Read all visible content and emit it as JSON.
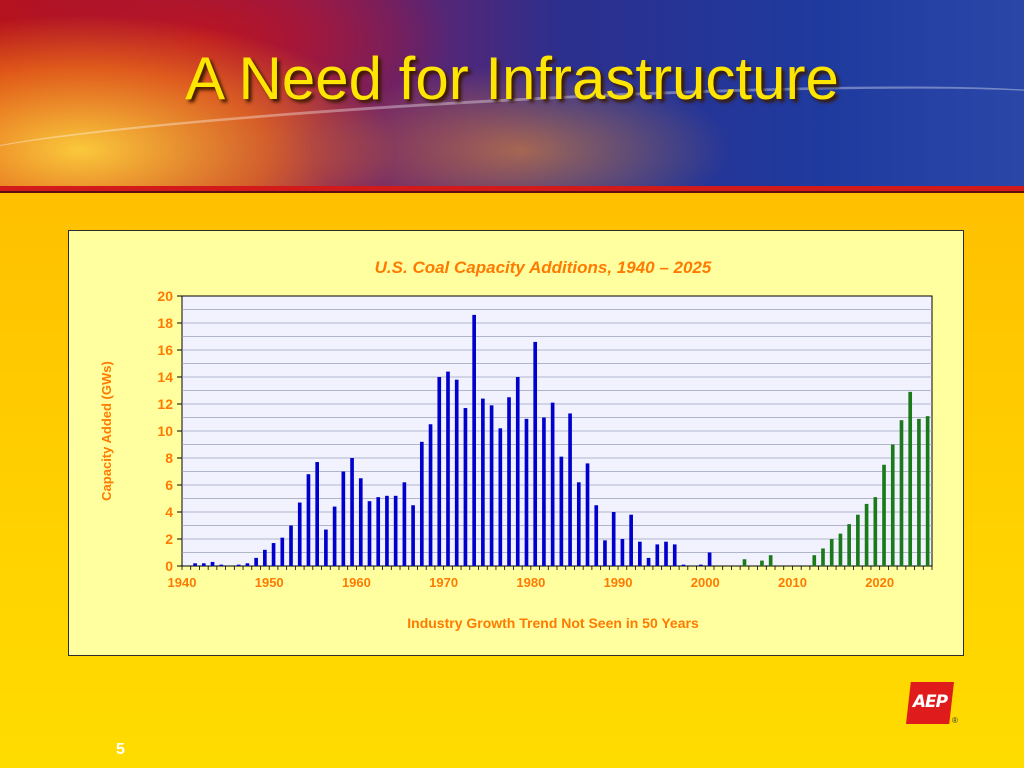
{
  "slide": {
    "title": "A Need for Infrastructure",
    "page_number": "5",
    "logo_text": "AEP",
    "logo_mark": "®"
  },
  "colors": {
    "title": "#ffe600",
    "historical_bar": "#0000cc",
    "projected_bar": "#1a7a1a",
    "chart_text": "#ff7a00",
    "plot_background": "#f2f2ff",
    "panel_background": "#ffffa0"
  },
  "chart_data": {
    "type": "bar",
    "title": "U.S. Coal Capacity Additions, 1940 – 2025",
    "ylabel": "Capacity Added (GWs)",
    "caption": "Industry Growth Trend Not Seen in 50 Years",
    "xlim": [
      1940,
      2025
    ],
    "x_ticks": [
      "1940",
      "1950",
      "1960",
      "1970",
      "1980",
      "1990",
      "2000",
      "2010",
      "2020"
    ],
    "ylim": [
      0,
      20
    ],
    "y_ticks": [
      "0",
      "2",
      "4",
      "6",
      "8",
      "10",
      "12",
      "14",
      "16",
      "18",
      "20"
    ],
    "grid": true,
    "series": [
      {
        "years": [
          1941,
          1942,
          1943,
          1944,
          1946,
          1947,
          1948,
          1949,
          1950,
          1951,
          1952,
          1953,
          1954,
          1955,
          1956,
          1957,
          1958,
          1959,
          1960,
          1961,
          1962,
          1963,
          1964,
          1965,
          1966,
          1967,
          1968,
          1969,
          1970,
          1971,
          1972,
          1973,
          1974,
          1975,
          1976,
          1977,
          1978,
          1979,
          1980,
          1981,
          1982,
          1983,
          1984,
          1985,
          1986,
          1987,
          1988,
          1989,
          1990,
          1991,
          1992,
          1993,
          1994,
          1995,
          1996,
          1997,
          1999,
          2000
        ],
        "values": [
          0.2,
          0.2,
          0.3,
          0.1,
          0.1,
          0.2,
          0.6,
          1.2,
          1.7,
          2.1,
          3.0,
          4.7,
          6.8,
          7.7,
          2.7,
          4.4,
          7.0,
          8.0,
          6.5,
          4.8,
          5.1,
          5.2,
          5.2,
          6.2,
          4.5,
          9.2,
          10.5,
          14.0,
          14.4,
          13.8,
          11.7,
          18.6,
          12.4,
          11.9,
          10.2,
          12.5,
          14.0,
          10.9,
          16.6,
          11.0,
          12.1,
          8.1,
          11.3,
          6.2,
          7.6,
          4.5,
          1.9,
          4.0,
          2.0,
          3.8,
          1.8,
          0.6,
          1.6,
          1.8,
          1.6,
          0.1,
          0.1,
          1.0
        ]
      },
      {
        "years": [
          2004,
          2006,
          2007,
          2012,
          2013,
          2014,
          2015,
          2016,
          2017,
          2018,
          2019,
          2020,
          2021,
          2022,
          2023,
          2024,
          2025
        ],
        "values": [
          0.5,
          0.4,
          0.8,
          0.8,
          1.3,
          2.0,
          2.4,
          3.1,
          3.8,
          4.6,
          5.1,
          7.5,
          9.0,
          10.8,
          12.9,
          10.9,
          11.1
        ]
      }
    ]
  }
}
